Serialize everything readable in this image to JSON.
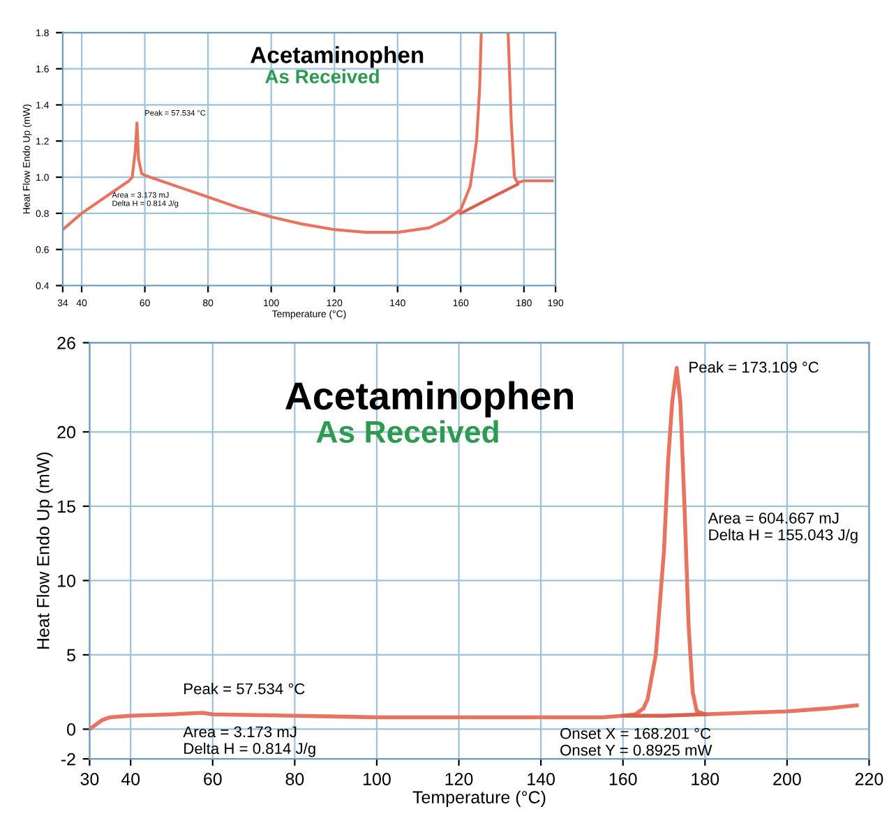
{
  "chart_data": [
    {
      "type": "line",
      "title": "Acetaminophen",
      "subtitle": "As Received",
      "xlabel": "Temperature (°C)",
      "ylabel": "Heat Flow Endo Up (mW)",
      "xlim": [
        34,
        190
      ],
      "xticks": [
        34,
        40,
        60,
        80,
        100,
        120,
        140,
        160,
        180,
        190
      ],
      "ylim": [
        0.4,
        1.8
      ],
      "yticks": [
        0.4,
        0.6,
        0.8,
        {
          "value": 1,
          "label": "1.0"
        },
        1.2,
        1.4,
        1.6,
        1.8
      ],
      "grid": true,
      "marker": "none",
      "line_style": "solid",
      "series": [
        {
          "color": "#e8735f",
          "x": [
            34,
            40,
            50,
            55,
            56,
            57,
            57.5,
            58,
            59,
            60,
            70,
            80,
            90,
            100,
            110,
            120,
            130,
            140,
            150,
            155,
            160,
            163,
            165,
            166,
            166.5,
            170,
            175,
            176,
            177,
            178,
            180,
            189
          ],
          "values": [
            0.71,
            0.8,
            0.92,
            0.98,
            1.0,
            1.15,
            1.3,
            1.1,
            1.02,
            1.01,
            0.95,
            0.89,
            0.83,
            0.78,
            0.74,
            0.71,
            0.695,
            0.695,
            0.72,
            0.76,
            0.82,
            0.95,
            1.2,
            1.5,
            1.8,
            null,
            1.8,
            1.3,
            1.0,
            0.97,
            0.98,
            0.98
          ]
        },
        {
          "color": "#d9604c",
          "x": [
            160,
            170,
            178
          ],
          "values": [
            0.8,
            0.89,
            0.96
          ]
        }
      ],
      "annotations": [
        {
          "text": "Peak = 57.534 °C",
          "x": 57.5,
          "y": 1.3
        },
        "Area = 3.173 mJ\nDelta H = 0.814 J/g"
      ]
    },
    {
      "type": "line",
      "title": "Acetaminophen",
      "subtitle": "As Received",
      "xlabel": "Temperature (°C)",
      "ylabel": "Heat Flow Endo Up (mW)",
      "xlim": [
        30,
        220
      ],
      "xticks": [
        30,
        40,
        60,
        80,
        100,
        120,
        140,
        160,
        180,
        200,
        220
      ],
      "ylim": [
        -2,
        26
      ],
      "yticks": [
        -2,
        0,
        5,
        10,
        15,
        20,
        26
      ],
      "grid": true,
      "marker": "none",
      "line_style": "solid",
      "series": [
        {
          "color": "#e8735f",
          "x": [
            30,
            33,
            35,
            40,
            50,
            57.5,
            60,
            80,
            100,
            120,
            140,
            155,
            160,
            163,
            165,
            166,
            168,
            170,
            171,
            172,
            173.1,
            174,
            175,
            176,
            177,
            178,
            180,
            190,
            200,
            210,
            217
          ],
          "values": [
            0,
            0.6,
            0.8,
            0.9,
            1.0,
            1.1,
            1.0,
            0.9,
            0.8,
            0.8,
            0.8,
            0.8,
            0.9,
            1.0,
            1.4,
            2,
            5,
            12,
            18,
            22,
            24.3,
            22,
            15,
            7,
            2.5,
            1.2,
            1.0,
            1.1,
            1.2,
            1.4,
            1.6
          ]
        },
        {
          "color": "#d9604c",
          "x": [
            160,
            170,
            180
          ],
          "values": [
            0.9,
            0.9,
            1.0
          ]
        }
      ],
      "annotations": [
        {
          "text": "Peak = 173.109 °C",
          "x": 173.1,
          "y": 24.3
        },
        {
          "text": "Area = 604.667 mJ\nDelta H = 155.043 J/g",
          "x": 176,
          "y": 12.5
        },
        {
          "text": "Onset X = 168.201 °C\nOnset Y = 0.8925 mW",
          "x": 168.2,
          "y": 0.89
        },
        {
          "text": "Peak = 57.534 °C",
          "x": 57.5,
          "y": 1.1
        },
        {
          "text": "Area = 3.173 mJ\nDelta H = 0.814 J/g",
          "x": 57.5,
          "y": 1.0
        }
      ]
    }
  ]
}
